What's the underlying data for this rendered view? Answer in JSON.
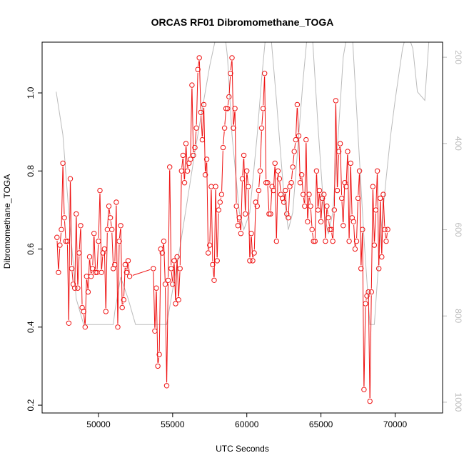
{
  "chart_data": {
    "type": "line",
    "title": "ORCAS RF01 Dibromomethane_TOGA",
    "xlabel": "UTC Seconds",
    "ylabel": "Dibromomethane_TOGA",
    "xlim": [
      46200,
      73200
    ],
    "ylim": [
      0.18,
      1.13
    ],
    "y2lim": [
      1025,
      165
    ],
    "x_ticks": [
      50000,
      55000,
      60000,
      65000,
      70000
    ],
    "y_ticks": [
      0.2,
      0.4,
      0.6,
      0.8,
      1.0
    ],
    "y2_ticks": [
      200,
      400,
      600,
      800,
      1000
    ],
    "grid": false,
    "colors": {
      "primary": "#ee1111",
      "secondary": "#bbbbbb",
      "axis": "#000000",
      "axis2": "#bbbbbb"
    },
    "series": [
      {
        "role": "primary",
        "points": [
          [
            47200,
            0.63
          ],
          [
            47300,
            0.54
          ],
          [
            47400,
            0.61
          ],
          [
            47500,
            0.65
          ],
          [
            47600,
            0.82
          ],
          [
            47700,
            0.68
          ],
          [
            47800,
            0.62
          ],
          [
            47900,
            0.62
          ],
          [
            48000,
            0.41
          ],
          [
            48100,
            0.78
          ],
          [
            48200,
            0.55
          ],
          [
            48300,
            0.51
          ],
          [
            48400,
            0.5
          ],
          [
            48500,
            0.69
          ],
          [
            48600,
            0.5
          ],
          [
            48700,
            0.59
          ],
          [
            48800,
            0.66
          ],
          [
            48900,
            0.45
          ],
          [
            49000,
            0.44
          ],
          [
            49100,
            0.4
          ],
          [
            49200,
            0.53
          ],
          [
            49300,
            0.49
          ],
          [
            49400,
            0.58
          ],
          [
            49500,
            0.53
          ],
          [
            49600,
            0.55
          ],
          [
            49700,
            0.64
          ],
          [
            49800,
            0.54
          ],
          [
            49900,
            0.54
          ],
          [
            50000,
            0.62
          ],
          [
            50100,
            0.75
          ],
          [
            50200,
            0.54
          ],
          [
            50300,
            0.59
          ],
          [
            50400,
            0.6
          ],
          [
            50500,
            0.44
          ],
          [
            50600,
            0.65
          ],
          [
            50700,
            0.71
          ],
          [
            50800,
            0.68
          ],
          [
            50900,
            0.65
          ],
          [
            51000,
            0.55
          ],
          [
            51100,
            0.56
          ],
          [
            51200,
            0.72
          ],
          [
            51300,
            0.4
          ],
          [
            51400,
            0.62
          ],
          [
            51500,
            0.66
          ],
          [
            51600,
            0.45
          ],
          [
            51700,
            0.47
          ],
          [
            51800,
            0.56
          ],
          [
            51900,
            0.54
          ],
          [
            52000,
            0.57
          ],
          [
            52100,
            0.53
          ],
          [
            53700,
            0.55
          ],
          [
            53800,
            0.39
          ],
          [
            53900,
            0.5
          ],
          [
            54000,
            0.3
          ],
          [
            54100,
            0.33
          ],
          [
            54200,
            0.6
          ],
          [
            54300,
            0.59
          ],
          [
            54400,
            0.62
          ],
          [
            54500,
            0.51
          ],
          [
            54600,
            0.25
          ],
          [
            54700,
            0.52
          ],
          [
            54800,
            0.81
          ],
          [
            54900,
            0.55
          ],
          [
            55000,
            0.51
          ],
          [
            55100,
            0.57
          ],
          [
            55200,
            0.46
          ],
          [
            55300,
            0.58
          ],
          [
            55400,
            0.47
          ],
          [
            55500,
            0.55
          ],
          [
            55600,
            0.8
          ],
          [
            55700,
            0.84
          ],
          [
            55800,
            0.77
          ],
          [
            55900,
            0.87
          ],
          [
            56000,
            0.8
          ],
          [
            56100,
            0.82
          ],
          [
            56200,
            0.83
          ],
          [
            56300,
            1.02
          ],
          [
            56400,
            0.84
          ],
          [
            56500,
            0.86
          ],
          [
            56600,
            0.91
          ],
          [
            56700,
            1.06
          ],
          [
            56800,
            1.09
          ],
          [
            56900,
            0.95
          ],
          [
            57000,
            0.88
          ],
          [
            57100,
            0.97
          ],
          [
            57200,
            0.79
          ],
          [
            57300,
            0.83
          ],
          [
            57400,
            0.59
          ],
          [
            57500,
            0.61
          ],
          [
            57600,
            0.76
          ],
          [
            57700,
            0.56
          ],
          [
            57800,
            0.52
          ],
          [
            57900,
            0.76
          ],
          [
            58000,
            0.57
          ],
          [
            58100,
            0.7
          ],
          [
            58200,
            0.72
          ],
          [
            58300,
            0.74
          ],
          [
            58400,
            0.86
          ],
          [
            58500,
            0.91
          ],
          [
            58600,
            0.96
          ],
          [
            58700,
            0.96
          ],
          [
            58800,
            0.99
          ],
          [
            58900,
            1.05
          ],
          [
            59000,
            1.09
          ],
          [
            59100,
            0.91
          ],
          [
            59200,
            0.96
          ],
          [
            59300,
            0.71
          ],
          [
            59400,
            0.66
          ],
          [
            59500,
            0.68
          ],
          [
            59600,
            0.64
          ],
          [
            59700,
            0.78
          ],
          [
            59800,
            0.84
          ],
          [
            59900,
            0.69
          ],
          [
            60000,
            0.8
          ],
          [
            60100,
            0.76
          ],
          [
            60200,
            0.57
          ],
          [
            60300,
            0.64
          ],
          [
            60400,
            0.57
          ],
          [
            60500,
            0.59
          ],
          [
            60600,
            0.72
          ],
          [
            60700,
            0.71
          ],
          [
            60800,
            0.75
          ],
          [
            60900,
            0.8
          ],
          [
            61000,
            0.91
          ],
          [
            61100,
            0.96
          ],
          [
            61200,
            1.05
          ],
          [
            61300,
            0.77
          ],
          [
            61400,
            0.77
          ],
          [
            61500,
            0.69
          ],
          [
            61600,
            0.69
          ],
          [
            61700,
            0.76
          ],
          [
            61800,
            0.75
          ],
          [
            61900,
            0.82
          ],
          [
            62000,
            0.62
          ],
          [
            62100,
            0.8
          ],
          [
            62200,
            0.78
          ],
          [
            62300,
            0.74
          ],
          [
            62400,
            0.73
          ],
          [
            62500,
            0.72
          ],
          [
            62600,
            0.75
          ],
          [
            62700,
            0.69
          ],
          [
            62800,
            0.68
          ],
          [
            62900,
            0.76
          ],
          [
            63000,
            0.77
          ],
          [
            63100,
            0.81
          ],
          [
            63200,
            0.85
          ],
          [
            63300,
            0.88
          ],
          [
            63400,
            0.97
          ],
          [
            63500,
            0.89
          ],
          [
            63600,
            0.77
          ],
          [
            63700,
            0.79
          ],
          [
            63800,
            0.74
          ],
          [
            63900,
            0.71
          ],
          [
            64000,
            0.88
          ],
          [
            64100,
            0.67
          ],
          [
            64200,
            0.74
          ],
          [
            64300,
            0.71
          ],
          [
            64400,
            0.65
          ],
          [
            64500,
            0.62
          ],
          [
            64600,
            0.62
          ],
          [
            64700,
            0.8
          ],
          [
            64800,
            0.7
          ],
          [
            64900,
            0.75
          ],
          [
            65000,
            0.67
          ],
          [
            65100,
            0.73
          ],
          [
            65200,
            0.74
          ],
          [
            65300,
            0.62
          ],
          [
            65400,
            0.71
          ],
          [
            65500,
            0.68
          ],
          [
            65600,
            0.65
          ],
          [
            65700,
            0.65
          ],
          [
            65800,
            0.62
          ],
          [
            65900,
            0.7
          ],
          [
            66000,
            0.98
          ],
          [
            66100,
            0.75
          ],
          [
            66200,
            0.85
          ],
          [
            66300,
            0.87
          ],
          [
            66400,
            0.73
          ],
          [
            66500,
            0.66
          ],
          [
            66600,
            0.77
          ],
          [
            66700,
            0.76
          ],
          [
            66800,
            0.85
          ],
          [
            66900,
            0.62
          ],
          [
            67000,
            0.82
          ],
          [
            67100,
            0.68
          ],
          [
            67200,
            0.67
          ],
          [
            67300,
            0.6
          ],
          [
            67400,
            0.62
          ],
          [
            67500,
            0.73
          ],
          [
            67600,
            0.8
          ],
          [
            67700,
            0.55
          ],
          [
            67800,
            0.65
          ],
          [
            67900,
            0.24
          ],
          [
            68000,
            0.46
          ],
          [
            68100,
            0.48
          ],
          [
            68200,
            0.49
          ],
          [
            68300,
            0.21
          ],
          [
            68400,
            0.49
          ],
          [
            68500,
            0.76
          ],
          [
            68600,
            0.61
          ],
          [
            68700,
            0.7
          ],
          [
            68800,
            0.8
          ],
          [
            68900,
            0.55
          ],
          [
            69000,
            0.73
          ],
          [
            69100,
            0.58
          ],
          [
            69200,
            0.74
          ],
          [
            69300,
            0.65
          ],
          [
            69400,
            0.62
          ],
          [
            69500,
            0.65
          ]
        ]
      },
      {
        "role": "secondary",
        "points": [
          [
            47150,
            280
          ],
          [
            47600,
            380
          ],
          [
            48000,
            560
          ],
          [
            48500,
            760
          ],
          [
            49000,
            820
          ],
          [
            50000,
            820
          ],
          [
            51000,
            820
          ],
          [
            51100,
            790
          ],
          [
            51500,
            710
          ],
          [
            52000,
            760
          ],
          [
            52500,
            820
          ],
          [
            53500,
            820
          ],
          [
            54600,
            820
          ],
          [
            55000,
            740
          ],
          [
            55500,
            640
          ],
          [
            56000,
            530
          ],
          [
            56500,
            420
          ],
          [
            57000,
            320
          ],
          [
            57500,
            220
          ],
          [
            58000,
            140
          ],
          [
            58500,
            140
          ],
          [
            58700,
            200
          ],
          [
            59000,
            380
          ],
          [
            59500,
            560
          ],
          [
            59800,
            600
          ],
          [
            60200,
            560
          ],
          [
            60700,
            380
          ],
          [
            61000,
            250
          ],
          [
            61300,
            140
          ],
          [
            61600,
            140
          ],
          [
            62000,
            300
          ],
          [
            62500,
            520
          ],
          [
            62800,
            600
          ],
          [
            63100,
            560
          ],
          [
            63500,
            380
          ],
          [
            63800,
            250
          ],
          [
            64100,
            140
          ],
          [
            64400,
            140
          ],
          [
            64800,
            360
          ],
          [
            65200,
            560
          ],
          [
            65500,
            610
          ],
          [
            65800,
            560
          ],
          [
            66200,
            360
          ],
          [
            66500,
            200
          ],
          [
            66800,
            140
          ],
          [
            67100,
            140
          ],
          [
            67500,
            380
          ],
          [
            67900,
            620
          ],
          [
            68300,
            820
          ],
          [
            68600,
            820
          ],
          [
            69000,
            620
          ],
          [
            69400,
            480
          ],
          [
            69700,
            380
          ],
          [
            70000,
            300
          ],
          [
            70500,
            180
          ],
          [
            70800,
            140
          ],
          [
            71200,
            180
          ],
          [
            71500,
            280
          ],
          [
            72000,
            300
          ],
          [
            72400,
            100
          ]
        ]
      }
    ]
  }
}
